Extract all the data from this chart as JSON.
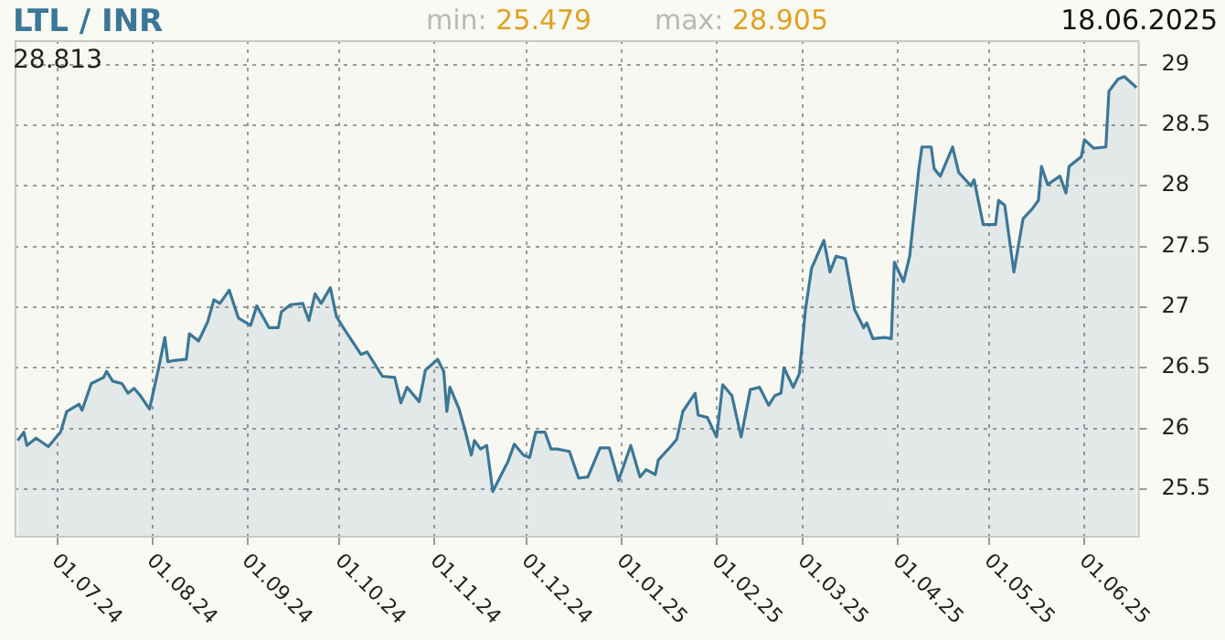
{
  "chart_data": {
    "type": "area",
    "title": "LTL / INR",
    "annotations": [
      "min: 25.479",
      "max: 28.905",
      "18.06.2025",
      "28.813"
    ],
    "x": [
      "2024-06-18",
      "2024-06-20",
      "2024-06-21",
      "2024-06-24",
      "2024-06-28",
      "2024-07-02",
      "2024-07-04",
      "2024-07-08",
      "2024-07-09",
      "2024-07-12",
      "2024-07-16",
      "2024-07-17",
      "2024-07-19",
      "2024-07-22",
      "2024-07-24",
      "2024-07-26",
      "2024-07-28",
      "2024-07-31",
      "2024-08-03",
      "2024-08-05",
      "2024-08-06",
      "2024-08-08",
      "2024-08-12",
      "2024-08-13",
      "2024-08-16",
      "2024-08-19",
      "2024-08-21",
      "2024-08-23",
      "2024-08-26",
      "2024-08-29",
      "2024-09-02",
      "2024-09-04",
      "2024-09-08",
      "2024-09-11",
      "2024-09-12",
      "2024-09-15",
      "2024-09-19",
      "2024-09-21",
      "2024-09-23",
      "2024-09-25",
      "2024-09-28",
      "2024-09-30",
      "2024-10-03",
      "2024-10-08",
      "2024-10-10",
      "2024-10-15",
      "2024-10-19",
      "2024-10-21",
      "2024-10-23",
      "2024-10-27",
      "2024-10-29",
      "2024-11-02",
      "2024-11-04",
      "2024-11-05",
      "2024-11-06",
      "2024-11-09",
      "2024-11-11",
      "2024-11-13",
      "2024-11-14",
      "2024-11-16",
      "2024-11-18",
      "2024-11-20",
      "2024-11-25",
      "2024-11-27",
      "2024-11-30",
      "2024-12-02",
      "2024-12-04",
      "2024-12-07",
      "2024-12-09",
      "2024-12-11",
      "2024-12-15",
      "2024-12-18",
      "2024-12-21",
      "2024-12-25",
      "2024-12-28",
      "2024-12-31",
      "2025-01-04",
      "2025-01-07",
      "2025-01-09",
      "2025-01-12",
      "2025-01-13",
      "2025-01-17",
      "2025-01-19",
      "2025-01-21",
      "2025-01-25",
      "2025-01-26",
      "2025-01-29",
      "2025-02-01",
      "2025-02-03",
      "2025-02-06",
      "2025-02-09",
      "2025-02-12",
      "2025-02-15",
      "2025-02-18",
      "2025-02-20",
      "2025-02-22",
      "2025-02-23",
      "2025-02-26",
      "2025-02-28",
      "2025-03-02",
      "2025-03-04",
      "2025-03-08",
      "2025-03-10",
      "2025-03-12",
      "2025-03-15",
      "2025-03-18",
      "2025-03-21",
      "2025-03-22",
      "2025-03-24",
      "2025-03-28",
      "2025-03-30",
      "2025-03-31",
      "2025-04-03",
      "2025-04-05",
      "2025-04-08",
      "2025-04-09",
      "2025-04-12",
      "2025-04-13",
      "2025-04-15",
      "2025-04-19",
      "2025-04-21",
      "2025-04-25",
      "2025-04-26",
      "2025-04-29",
      "2025-05-03",
      "2025-05-04",
      "2025-05-06",
      "2025-05-09",
      "2025-05-12",
      "2025-05-15",
      "2025-05-17",
      "2025-05-18",
      "2025-05-20",
      "2025-05-24",
      "2025-05-26",
      "2025-05-27",
      "2025-05-31",
      "2025-06-01",
      "2025-06-04",
      "2025-06-08",
      "2025-06-09",
      "2025-06-12",
      "2025-06-14",
      "2025-06-18"
    ],
    "series": [
      {
        "color": "#3b7797",
        "values": [
          25.9,
          25.97,
          25.86,
          25.92,
          25.85,
          25.97,
          26.14,
          26.2,
          26.15,
          26.37,
          26.42,
          26.47,
          26.39,
          26.37,
          26.29,
          26.33,
          26.27,
          26.16,
          26.5,
          26.75,
          26.55,
          26.56,
          26.57,
          26.78,
          26.72,
          26.88,
          27.06,
          27.03,
          27.14,
          26.91,
          26.85,
          27.01,
          26.83,
          26.83,
          26.96,
          27.02,
          27.03,
          26.89,
          27.11,
          27.03,
          27.16,
          26.92,
          26.8,
          26.61,
          26.63,
          26.43,
          26.42,
          26.21,
          26.34,
          26.22,
          26.48,
          26.57,
          26.47,
          26.14,
          26.34,
          26.16,
          25.98,
          25.78,
          25.9,
          25.83,
          25.86,
          25.48,
          25.73,
          25.87,
          25.78,
          25.76,
          25.97,
          25.97,
          25.83,
          25.83,
          25.81,
          25.59,
          25.6,
          25.84,
          25.84,
          25.57,
          25.86,
          25.6,
          25.66,
          25.62,
          25.74,
          25.85,
          25.91,
          26.14,
          26.29,
          26.11,
          26.09,
          25.93,
          26.36,
          26.27,
          25.93,
          26.32,
          26.34,
          26.19,
          26.27,
          26.29,
          26.5,
          26.34,
          26.45,
          26.98,
          27.32,
          27.55,
          27.29,
          27.42,
          27.4,
          26.98,
          26.83,
          26.87,
          26.74,
          26.75,
          26.74,
          27.37,
          27.21,
          27.42,
          28.14,
          28.32,
          28.32,
          28.14,
          28.08,
          28.32,
          28.11,
          28.0,
          28.05,
          27.68,
          27.68,
          27.88,
          27.84,
          27.29,
          27.73,
          27.81,
          27.88,
          28.16,
          28.01,
          28.08,
          27.94,
          28.16,
          28.24,
          28.38,
          28.31,
          28.32,
          28.78,
          28.88,
          28.9,
          28.81
        ]
      }
    ],
    "xlim": [
      "2024-06-17",
      "2025-06-19"
    ],
    "xticks": [
      {
        "value": "2024-07-01",
        "label": "01.07.24"
      },
      {
        "value": "2024-08-01",
        "label": "01.08.24"
      },
      {
        "value": "2024-09-01",
        "label": "01.09.24"
      },
      {
        "value": "2024-10-01",
        "label": "01.10.24"
      },
      {
        "value": "2024-11-01",
        "label": "01.11.24"
      },
      {
        "value": "2024-12-01",
        "label": "01.12.24"
      },
      {
        "value": "2025-01-01",
        "label": "01.01.25"
      },
      {
        "value": "2025-02-01",
        "label": "01.02.25"
      },
      {
        "value": "2025-03-01",
        "label": "01.03.25"
      },
      {
        "value": "2025-04-01",
        "label": "01.04.25"
      },
      {
        "value": "2025-05-01",
        "label": "01.05.25"
      },
      {
        "value": "2025-06-01",
        "label": "01.06.25"
      }
    ],
    "ylim": [
      25.1,
      29.2
    ],
    "yticks": [
      25.5,
      26,
      26.5,
      27,
      27.5,
      28,
      28.5,
      29
    ],
    "grid": true
  }
}
